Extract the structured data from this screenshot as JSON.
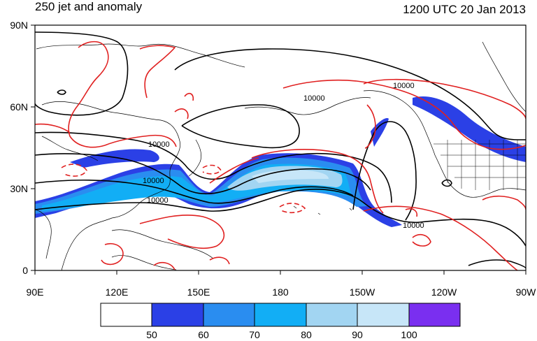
{
  "title_left": "250 jet and anomaly",
  "title_right": "1200 UTC 20 Jan 2013",
  "lat_labels": [
    "90N",
    "60N",
    "30N",
    "0"
  ],
  "lon_labels": [
    "90E",
    "120E",
    "150E",
    "180",
    "150W",
    "120W",
    "90W"
  ],
  "contour_labels": [
    "10000",
    "10000",
    "10000",
    "10000",
    "10000",
    "10000"
  ],
  "colorbar": {
    "labels": [
      "50",
      "60",
      "70",
      "80",
      "90",
      "100"
    ],
    "colors": [
      "#ffffff",
      "#2b40e6",
      "#2a8df0",
      "#12aef5",
      "#a2d5f2",
      "#c7e6f8",
      "#7a2ff0"
    ]
  },
  "colors": {
    "height_contour": "#000000",
    "anomaly_contour": "#e02020"
  }
}
